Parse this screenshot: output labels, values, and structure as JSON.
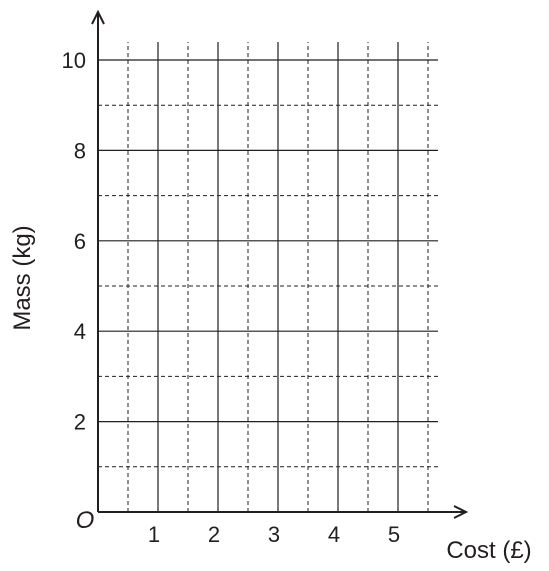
{
  "chart_data": {
    "type": "scatter",
    "title": "",
    "xlabel": "Cost (£)",
    "ylabel": "Mass (kg)",
    "origin_label": "O",
    "xlim": [
      0,
      5.5
    ],
    "ylim": [
      0,
      10
    ],
    "x_ticks": [
      1,
      2,
      3,
      4,
      5
    ],
    "y_ticks": [
      2,
      4,
      6,
      8,
      10
    ],
    "x_minor_step": 0.5,
    "y_minor_step": 1,
    "grid": true,
    "series": []
  }
}
